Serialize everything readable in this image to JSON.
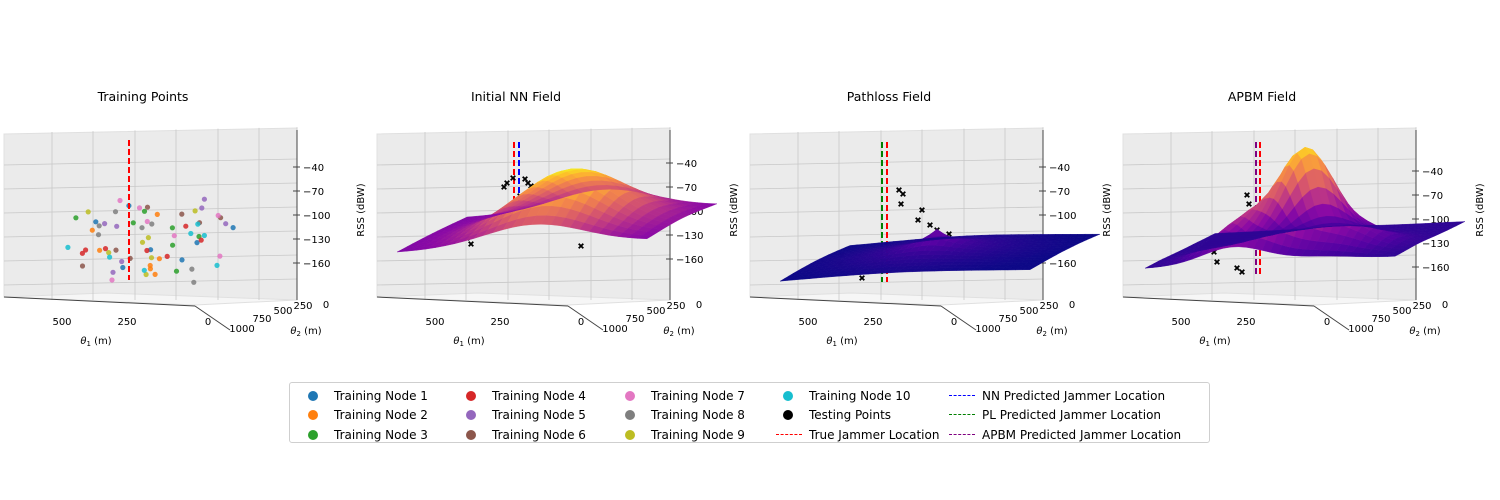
{
  "chart_data": [
    {
      "type": "scatter3d",
      "title": "Training Points",
      "xlabel": "θ1 (m)",
      "ylabel": "θ2 (m)",
      "zlabel": "RSS (dBW)",
      "x_ticks": [
        "500",
        "250",
        "0"
      ],
      "y_ticks": [
        "1000",
        "750",
        "500",
        "250",
        "0"
      ],
      "z_ticks": [
        "−40",
        "−70",
        "−100",
        "−130",
        "−160"
      ],
      "zlim": [
        -175,
        -15
      ],
      "true_jammer": {
        "theta1": 300,
        "theta2": 500,
        "z_top": -30,
        "z_bottom": -160
      }
    },
    {
      "type": "surface3d",
      "title": "Initial NN Field",
      "colormap": "plasma",
      "xlabel": "θ1 (m)",
      "ylabel": "θ2 (m)",
      "zlabel": "RSS (dBW)",
      "x_ticks": [
        "500",
        "250",
        "0"
      ],
      "y_ticks": [
        "1000",
        "750",
        "500",
        "250",
        "0"
      ],
      "z_ticks": [
        "−40",
        "−70",
        "−100",
        "−130",
        "−160"
      ]
    },
    {
      "type": "surface3d",
      "title": "Pathloss Field",
      "colormap": "plasma",
      "xlabel": "θ1 (m)",
      "ylabel": "θ2 (m)",
      "zlabel": "RSS (dBW)",
      "x_ticks": [
        "500",
        "250",
        "0"
      ],
      "y_ticks": [
        "1000",
        "750",
        "500",
        "250",
        "0"
      ],
      "z_ticks": [
        "−40",
        "−70",
        "−100",
        "−130",
        "−160"
      ]
    },
    {
      "type": "surface3d",
      "title": "APBM Field",
      "colormap": "plasma",
      "xlabel": "θ1 (m)",
      "ylabel": "θ2 (m)",
      "zlabel": "RSS (dBW)",
      "x_ticks": [
        "500",
        "250",
        "0"
      ],
      "y_ticks": [
        "1000",
        "750",
        "500",
        "250",
        "0"
      ],
      "z_ticks": [
        "−40",
        "−70",
        "−100",
        "−130",
        "−160"
      ]
    }
  ],
  "legend": {
    "columns": [
      [
        {
          "label": "Training Node 1",
          "kind": "dot",
          "color": "#1f77b4"
        },
        {
          "label": "Training Node 2",
          "kind": "dot",
          "color": "#ff7f0e"
        },
        {
          "label": "Training Node 3",
          "kind": "dot",
          "color": "#2ca02c"
        }
      ],
      [
        {
          "label": "Training Node 4",
          "kind": "dot",
          "color": "#d62728"
        },
        {
          "label": "Training Node 5",
          "kind": "dot",
          "color": "#9467bd"
        },
        {
          "label": "Training Node 6",
          "kind": "dot",
          "color": "#8c564b"
        }
      ],
      [
        {
          "label": "Training Node 7",
          "kind": "dot",
          "color": "#e377c2"
        },
        {
          "label": "Training Node 8",
          "kind": "dot",
          "color": "#7f7f7f"
        },
        {
          "label": "Training Node 9",
          "kind": "dot",
          "color": "#bcbd22"
        }
      ],
      [
        {
          "label": "Training Node 10",
          "kind": "dot",
          "color": "#17becf"
        },
        {
          "label": "Testing Points",
          "kind": "dot",
          "color": "#000000"
        },
        {
          "label": "True Jammer Location",
          "kind": "dash",
          "color": "#ff0000"
        }
      ],
      [
        {
          "label": "NN Predicted Jammer Location",
          "kind": "dash",
          "color": "#0000ff"
        },
        {
          "label": "PL Predicted Jammer Location",
          "kind": "dash",
          "color": "#008000"
        },
        {
          "label": "APBM Predicted Jammer Location",
          "kind": "dash",
          "color": "#800080"
        }
      ]
    ]
  }
}
